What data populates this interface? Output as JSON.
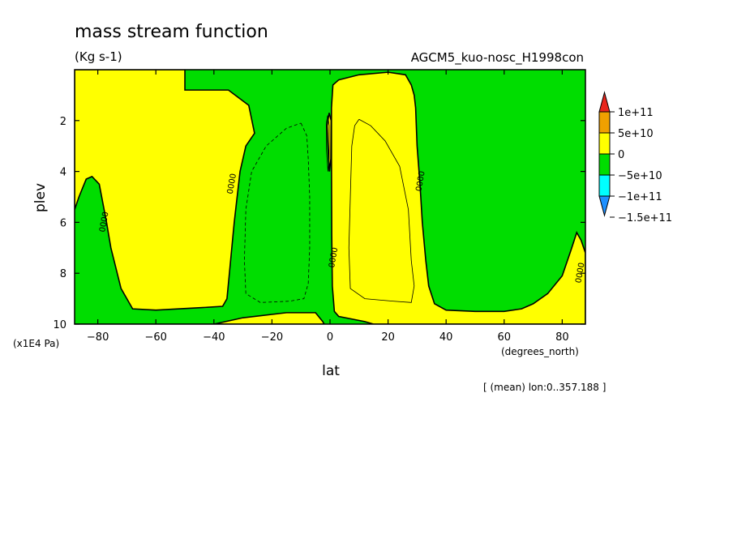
{
  "chart_data": {
    "type": "heatmap",
    "title": "mass stream function",
    "units": "(Kg s-1)",
    "dataset": "AGCM5_kuo-nosc_H1998con",
    "xlabel": "lat",
    "xunits": "(degrees_north)",
    "ylabel": "plev",
    "yunits": "(x1E4 Pa)",
    "footnote": "[ (mean) lon:0..357.188 ]",
    "xlim": [
      -88,
      88
    ],
    "ylim": [
      10,
      0
    ],
    "xticks": [
      -80,
      -60,
      -40,
      -20,
      0,
      20,
      40,
      60,
      80
    ],
    "xticklabels": [
      "−80",
      "−60",
      "−40",
      "−20",
      "0",
      "20",
      "40",
      "60",
      "80"
    ],
    "yticks": [
      2,
      4,
      6,
      8,
      10
    ],
    "yticklabels": [
      "2",
      "4",
      "6",
      "8",
      "10"
    ],
    "contour_label": "0000",
    "legend": [
      {
        "label": "1e+11",
        "color": "#e8251c"
      },
      {
        "label": "5e+10",
        "color": "#f0a000"
      },
      {
        "label": "0",
        "color": "#ffff00"
      },
      {
        "label": "−5e+10",
        "color": "#00dd00"
      },
      {
        "label": "−1e+11",
        "color": "#00ffff"
      },
      {
        "label": "−1.5e+11",
        "color": "#1e90ff"
      }
    ],
    "background_color": "#00dd00",
    "regions": [
      {
        "name": "yellow-nh-cell",
        "color": "#ffff00",
        "points": [
          [
            1,
            0.6
          ],
          [
            3,
            0.4
          ],
          [
            10,
            0.2
          ],
          [
            20,
            0.1
          ],
          [
            26,
            0.2
          ],
          [
            28,
            0.6
          ],
          [
            29,
            1.0
          ],
          [
            29.5,
            1.5
          ],
          [
            30,
            3
          ],
          [
            31,
            4.5
          ],
          [
            31.8,
            6
          ],
          [
            33,
            7.5
          ],
          [
            34,
            8.5
          ],
          [
            36,
            9.2
          ],
          [
            40,
            9.45
          ],
          [
            50,
            9.5
          ],
          [
            60,
            9.5
          ],
          [
            66,
            9.4
          ],
          [
            70,
            9.2
          ],
          [
            75,
            8.8
          ],
          [
            80,
            8.1
          ],
          [
            83,
            7.1
          ],
          [
            85,
            6.4
          ],
          [
            86.5,
            6.7
          ],
          [
            88,
            7.2
          ],
          [
            88,
            10
          ],
          [
            15,
            10
          ],
          [
            12,
            9.9
          ],
          [
            3,
            9.7
          ],
          [
            1.5,
            9.5
          ],
          [
            0.8,
            8.5
          ],
          [
            0.6,
            6.5
          ],
          [
            0.5,
            3.5
          ],
          [
            0.5,
            1.5
          ]
        ]
      },
      {
        "name": "yellow-sh-cell",
        "color": "#ffff00",
        "points": [
          [
            -88,
            0
          ],
          [
            -50,
            0
          ],
          [
            -50,
            0.8
          ],
          [
            -45,
            0.8
          ],
          [
            -35,
            0.8
          ],
          [
            -28,
            1.4
          ],
          [
            -26,
            2.5
          ],
          [
            -29,
            3
          ],
          [
            -31,
            4
          ],
          [
            -33,
            6
          ],
          [
            -34.5,
            7.8
          ],
          [
            -35.5,
            9
          ],
          [
            -37,
            9.3
          ],
          [
            -44,
            9.35
          ],
          [
            -60,
            9.45
          ],
          [
            -68,
            9.4
          ],
          [
            -72,
            8.6
          ],
          [
            -75.5,
            7
          ],
          [
            -77,
            6
          ],
          [
            -79.5,
            4.5
          ],
          [
            -82,
            4.2
          ],
          [
            -84,
            4.3
          ],
          [
            -86.5,
            5
          ],
          [
            -88,
            5.5
          ]
        ]
      },
      {
        "name": "yellow-south-strip",
        "color": "#ffff00",
        "points": [
          [
            -88,
            10
          ],
          [
            -40,
            10
          ],
          [
            -30,
            9.75
          ],
          [
            -15,
            9.55
          ],
          [
            -5,
            9.55
          ],
          [
            -2.5,
            9.9
          ],
          [
            -2,
            10
          ]
        ]
      },
      {
        "name": "yellow-equator-sliver",
        "color": "#ffff00",
        "points": [
          [
            -1,
            2.2
          ],
          [
            -0.3,
            1.7
          ],
          [
            0.4,
            2.0
          ],
          [
            0.3,
            3.5
          ],
          [
            -0.2,
            4.0
          ],
          [
            -0.6,
            3.3
          ]
        ]
      }
    ],
    "contours": [
      {
        "name": "contour-sh-dashed",
        "dashed": true,
        "points": [
          [
            -10,
            2.1
          ],
          [
            -8,
            2.6
          ],
          [
            -7.5,
            3.5
          ],
          [
            -7,
            5
          ],
          [
            -7,
            7
          ],
          [
            -7.5,
            8.4
          ],
          [
            -9,
            9.0
          ],
          [
            -14,
            9.1
          ],
          [
            -24,
            9.15
          ],
          [
            -29,
            8.8
          ],
          [
            -29.5,
            7.5
          ],
          [
            -29,
            5.5
          ],
          [
            -27,
            4
          ],
          [
            -22,
            3
          ],
          [
            -15,
            2.3
          ],
          [
            -10,
            2.1
          ]
        ]
      },
      {
        "name": "contour-nh-solid",
        "color": "#000",
        "dashed": false,
        "points": [
          [
            10,
            1.95
          ],
          [
            14,
            2.2
          ],
          [
            19,
            2.8
          ],
          [
            24,
            3.8
          ],
          [
            27,
            5.5
          ],
          [
            28,
            7.5
          ],
          [
            29,
            8.5
          ],
          [
            28,
            9.15
          ],
          [
            22,
            9.1
          ],
          [
            12,
            9.0
          ],
          [
            7,
            8.6
          ],
          [
            6.5,
            7
          ],
          [
            7,
            5
          ],
          [
            7.5,
            3
          ],
          [
            8.5,
            2.2
          ],
          [
            10,
            1.95
          ]
        ]
      },
      {
        "name": "contour-near-equator",
        "dashed": false,
        "points": [
          [
            -1.3,
            2.1
          ],
          [
            -0.8,
            1.8
          ],
          [
            -0.3,
            2.2
          ],
          [
            -0.3,
            3.5
          ],
          [
            -0.7,
            4.0
          ],
          [
            -1.2,
            3.2
          ],
          [
            -1.3,
            2.1
          ]
        ]
      }
    ],
    "contour_label_positions": [
      [
        -33,
        4.5
      ],
      [
        -77,
        6.0
      ],
      [
        32,
        4.4
      ],
      [
        2.0,
        7.4
      ],
      [
        87,
        8.0
      ]
    ]
  }
}
